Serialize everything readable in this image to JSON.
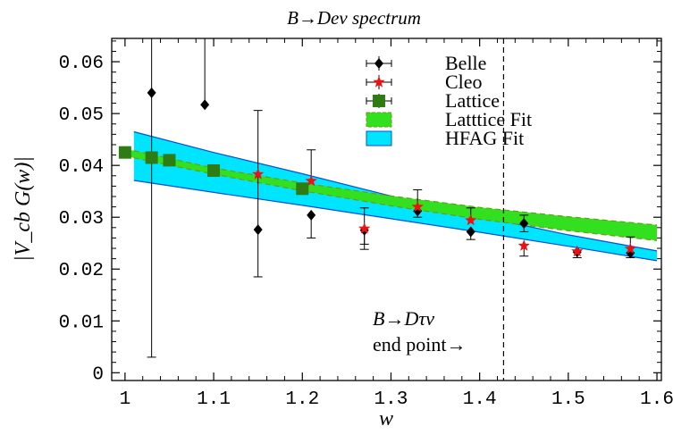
{
  "chart_data": {
    "type": "scatter",
    "title": "B→Deν  spectrum",
    "xlabel": "w",
    "ylabel": "|V_cb G(w)|",
    "xlim": [
      0.985,
      1.605
    ],
    "ylim": [
      -0.0015,
      0.0645
    ],
    "xticks": [
      1,
      1.1,
      1.2,
      1.3,
      1.4,
      1.5,
      1.6
    ],
    "xtick_labels": [
      "1",
      "1.1",
      "1.2",
      "1.3",
      "1.4",
      "1.5",
      "1.6"
    ],
    "yticks": [
      0,
      0.01,
      0.02,
      0.03,
      0.04,
      0.05,
      0.06
    ],
    "ytick_labels": [
      "0",
      "0.01",
      "0.02",
      "0.03",
      "0.04",
      "0.05",
      "0.06"
    ],
    "legend_position": "top-right",
    "annotation": {
      "line1": "B→Dτν",
      "line2": "end point→",
      "x": 1.427
    },
    "series": [
      {
        "name": "Belle",
        "marker": "diamond",
        "color": "#000000",
        "points": [
          {
            "x": 1.03,
            "y": 0.054,
            "err_low": 0.051,
            "err_high": 0.013
          },
          {
            "x": 1.09,
            "y": 0.0517,
            "err_low": 0.0,
            "err_high": 0.013
          },
          {
            "x": 1.15,
            "y": 0.0276,
            "err_low": 0.0091,
            "err_high": 0.023
          },
          {
            "x": 1.21,
            "y": 0.0304,
            "err_low": 0.0044,
            "err_high": 0.0
          },
          {
            "x": 1.27,
            "y": 0.0275,
            "err_low": 0.0027,
            "err_high": 0.0
          },
          {
            "x": 1.33,
            "y": 0.0312,
            "err_low": 0.0012,
            "err_high": 0.0
          },
          {
            "x": 1.39,
            "y": 0.0272,
            "err_low": 0.0015,
            "err_high": 0.0
          },
          {
            "x": 1.45,
            "y": 0.0288,
            "err_low": 0.0016,
            "err_high": 0.0016
          },
          {
            "x": 1.51,
            "y": 0.0233,
            "err_low": 0.0011,
            "err_high": 0.0
          },
          {
            "x": 1.57,
            "y": 0.0231,
            "err_low": 0.0009,
            "err_high": 0.0
          }
        ]
      },
      {
        "name": "Cleo",
        "marker": "star",
        "color": "#ee1111",
        "points": [
          {
            "x": 1.15,
            "y": 0.0383,
            "err_low": 0.0,
            "err_high": 0.0
          },
          {
            "x": 1.21,
            "y": 0.037,
            "err_low": 0.0,
            "err_high": 0.006
          },
          {
            "x": 1.27,
            "y": 0.0278,
            "err_low": 0.004,
            "err_high": 0.004
          },
          {
            "x": 1.33,
            "y": 0.032,
            "err_low": 0.0,
            "err_high": 0.0033
          },
          {
            "x": 1.39,
            "y": 0.0294,
            "err_low": 0.0,
            "err_high": 0.0024
          },
          {
            "x": 1.45,
            "y": 0.0245,
            "err_low": 0.002,
            "err_high": 0.0
          },
          {
            "x": 1.51,
            "y": 0.0234,
            "err_low": 0.0,
            "err_high": 0.0
          },
          {
            "x": 1.57,
            "y": 0.0239,
            "err_low": 0.0,
            "err_high": 0.0023
          }
        ]
      },
      {
        "name": "Lattice",
        "marker": "square",
        "color": "#2e7d14",
        "points": [
          {
            "x": 1.0,
            "y": 0.0425,
            "err_low": 0.001,
            "err_high": 0.001
          },
          {
            "x": 1.03,
            "y": 0.0415,
            "err_low": 0.001,
            "err_high": 0.001
          },
          {
            "x": 1.05,
            "y": 0.041,
            "err_low": 0.001,
            "err_high": 0.001
          },
          {
            "x": 1.1,
            "y": 0.039,
            "err_low": 0.0,
            "err_high": 0.0
          },
          {
            "x": 1.2,
            "y": 0.0355,
            "err_low": 0.001,
            "err_high": 0.001
          }
        ]
      }
    ],
    "bands": [
      {
        "name": "Latttice Fit",
        "color": "#33e01f",
        "edge_color": "#66a010",
        "x": [
          1.0,
          1.1,
          1.2,
          1.3,
          1.4,
          1.5,
          1.6
        ],
        "lower": [
          0.0418,
          0.0383,
          0.0351,
          0.0322,
          0.0296,
          0.0274,
          0.0255
        ],
        "upper": [
          0.0432,
          0.0395,
          0.0366,
          0.0341,
          0.0319,
          0.0301,
          0.0285
        ]
      },
      {
        "name": "HFAG Fit",
        "color": "#00e5ff",
        "edge_color": "#0a4fd6",
        "x": [
          1.01,
          1.1,
          1.2,
          1.3,
          1.4,
          1.5,
          1.6
        ],
        "lower": [
          0.0371,
          0.0348,
          0.0323,
          0.0297,
          0.0271,
          0.0244,
          0.0216
        ],
        "upper": [
          0.0465,
          0.0425,
          0.0384,
          0.0341,
          0.0302,
          0.0266,
          0.0235
        ]
      }
    ]
  }
}
